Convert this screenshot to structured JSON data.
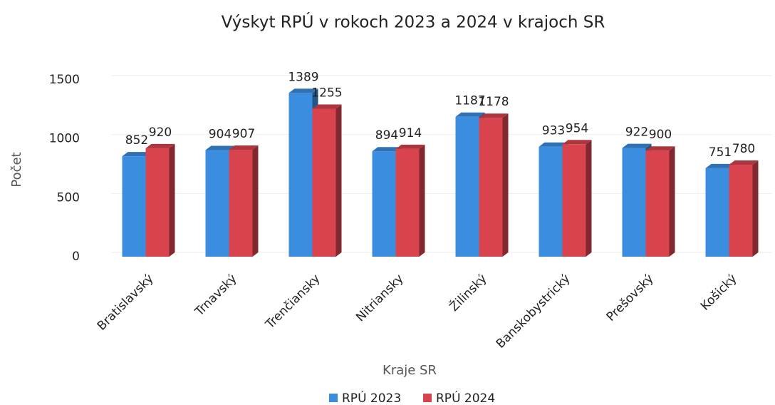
{
  "chart_data": {
    "type": "bar3d",
    "title": "Výskyt RPÚ v rokoch 2023 a 2024 v krajoch SR",
    "xlabel": "Kraje SR",
    "ylabel": "Počet",
    "categories": [
      "Bratislavský",
      "Trnavský",
      "Trenčiansky",
      "Nitriansky",
      "Žilinský",
      "Banskobystrický",
      "Prešovský",
      "Košický"
    ],
    "series": [
      {
        "name": "RPÚ 2023",
        "color": "#3b8de0",
        "values": [
          852,
          904,
          1389,
          894,
          1187,
          933,
          922,
          751
        ]
      },
      {
        "name": "RPÚ 2024",
        "color": "#d8434e",
        "values": [
          920,
          907,
          1255,
          914,
          1178,
          954,
          900,
          780
        ]
      }
    ],
    "ylim": [
      0,
      1500
    ],
    "yticks": [
      0,
      500,
      1000,
      1500
    ],
    "grid": true,
    "legend": "bottom"
  }
}
